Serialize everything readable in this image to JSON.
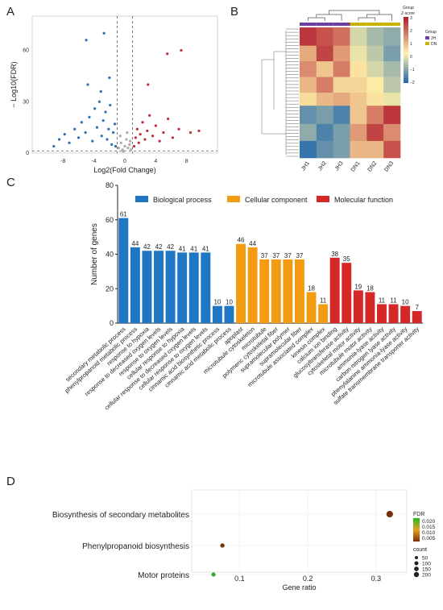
{
  "panels": {
    "a": "A",
    "b": "B",
    "c": "C",
    "d": "D"
  },
  "colors": {
    "volcano_up": "#c0303a",
    "volcano_down": "#2f6fb5",
    "volcano_ns": "#aaaaaa",
    "bio": "#1f77c4",
    "cell": "#f39c12",
    "mol": "#d62728",
    "heat_high": "#b2182b",
    "heat_mid": "#fff2a8",
    "heat_low": "#2166ac",
    "group_jh": "#6b3fa0",
    "group_dn": "#c8b400",
    "fdr_high": "#22bb22",
    "fdr_low": "#7b2d0a"
  },
  "chart_data": [
    {
      "panel": "A",
      "type": "scatter",
      "xlabel": "Log2(Fold Change)",
      "ylabel": "− Log10(FDR)",
      "x_ticks": [
        "-8",
        "-4",
        "0",
        "4",
        "8"
      ],
      "y_ticks": [
        "0",
        "30",
        "60"
      ],
      "xlim": [
        -12,
        12
      ],
      "ylim": [
        0,
        80
      ],
      "thresholds": {
        "fc": [
          -1,
          1
        ],
        "fdr": 1.3
      },
      "points": [
        [
          -9.2,
          4,
          "down"
        ],
        [
          -8.5,
          8,
          "down"
        ],
        [
          -7.8,
          11,
          "down"
        ],
        [
          -7.2,
          6,
          "down"
        ],
        [
          -6.5,
          14,
          "down"
        ],
        [
          -6.0,
          9,
          "down"
        ],
        [
          -5.6,
          18,
          "down"
        ],
        [
          -5.1,
          12,
          "down"
        ],
        [
          -4.6,
          21,
          "down"
        ],
        [
          -4.2,
          7,
          "down"
        ],
        [
          -3.9,
          26,
          "down"
        ],
        [
          -3.6,
          15,
          "down"
        ],
        [
          -3.3,
          30,
          "down"
        ],
        [
          -3.0,
          10,
          "down"
        ],
        [
          -2.8,
          19,
          "down"
        ],
        [
          -2.5,
          24,
          "down"
        ],
        [
          -2.3,
          8,
          "down"
        ],
        [
          -2.1,
          14,
          "down"
        ],
        [
          -1.9,
          28,
          "down"
        ],
        [
          -1.7,
          5,
          "down"
        ],
        [
          -1.5,
          12,
          "down"
        ],
        [
          -1.3,
          17,
          "down"
        ],
        [
          -1.2,
          4,
          "down"
        ],
        [
          -4.8,
          40,
          "down"
        ],
        [
          -3.1,
          36,
          "down"
        ],
        [
          -2.0,
          44,
          "down"
        ],
        [
          -5.0,
          66,
          "down"
        ],
        [
          -2.7,
          70,
          "down"
        ],
        [
          1.2,
          4,
          "up"
        ],
        [
          1.4,
          9,
          "up"
        ],
        [
          1.6,
          14,
          "up"
        ],
        [
          1.8,
          6,
          "up"
        ],
        [
          2.0,
          11,
          "up"
        ],
        [
          2.3,
          18,
          "up"
        ],
        [
          2.6,
          8,
          "up"
        ],
        [
          2.9,
          13,
          "up"
        ],
        [
          3.2,
          22,
          "up"
        ],
        [
          3.6,
          10,
          "up"
        ],
        [
          4.0,
          16,
          "up"
        ],
        [
          4.5,
          7,
          "up"
        ],
        [
          5.0,
          12,
          "up"
        ],
        [
          5.6,
          20,
          "up"
        ],
        [
          6.2,
          9,
          "up"
        ],
        [
          7.0,
          14,
          "up"
        ],
        [
          8.5,
          12,
          "up"
        ],
        [
          9.6,
          13,
          "up"
        ],
        [
          3.0,
          40,
          "up"
        ],
        [
          5.5,
          58,
          "up"
        ],
        [
          7.3,
          60,
          "up"
        ],
        [
          -0.8,
          3,
          "ns"
        ],
        [
          -0.5,
          6,
          "ns"
        ],
        [
          -0.3,
          2,
          "ns"
        ],
        [
          0.0,
          4,
          "ns"
        ],
        [
          0.2,
          8,
          "ns"
        ],
        [
          0.4,
          3,
          "ns"
        ],
        [
          0.6,
          5,
          "ns"
        ],
        [
          0.8,
          2,
          "ns"
        ],
        [
          -0.6,
          10,
          "ns"
        ],
        [
          0.3,
          12,
          "ns"
        ],
        [
          -0.2,
          1,
          "ns"
        ],
        [
          0.7,
          7,
          "ns"
        ]
      ]
    },
    {
      "panel": "B",
      "type": "heatmap",
      "columns": [
        "JH1",
        "JH2",
        "JH3",
        "DN1",
        "DN2",
        "DN3"
      ],
      "column_groups": [
        "JH",
        "JH",
        "JH",
        "DN",
        "DN",
        "DN"
      ],
      "legend_title": "Group",
      "legend_groups": [
        "JH",
        "DN"
      ],
      "scale_title": "Z-score",
      "scale_ticks": [
        "3",
        "2",
        "1",
        "0",
        "−1",
        "−2"
      ],
      "block_rows": [
        {
          "weight": 0.14,
          "values": [
            2.6,
            2.2,
            1.8,
            -0.4,
            -0.8,
            -1.0
          ]
        },
        {
          "weight": 0.12,
          "values": [
            1.0,
            2.4,
            1.2,
            -0.2,
            -0.6,
            -1.2
          ]
        },
        {
          "weight": 0.12,
          "values": [
            1.4,
            0.6,
            1.6,
            0.2,
            -0.4,
            -0.8
          ]
        },
        {
          "weight": 0.12,
          "values": [
            0.8,
            1.6,
            0.4,
            0.4,
            0.1,
            -0.6
          ]
        },
        {
          "weight": 0.1,
          "values": [
            0.3,
            0.8,
            1.0,
            0.6,
            0.2,
            -0.2
          ]
        },
        {
          "weight": 0.14,
          "values": [
            -1.4,
            -1.2,
            -1.6,
            0.6,
            1.6,
            2.6
          ]
        },
        {
          "weight": 0.13,
          "values": [
            -1.0,
            -1.6,
            -1.2,
            1.2,
            2.4,
            1.4
          ]
        },
        {
          "weight": 0.13,
          "values": [
            -1.8,
            -1.4,
            -1.2,
            0.8,
            0.8,
            2.2
          ]
        }
      ]
    },
    {
      "panel": "C",
      "type": "bar",
      "ylabel": "Number of genes",
      "ylim": [
        0,
        80
      ],
      "y_ticks": [
        0,
        20,
        40,
        60,
        80
      ],
      "legend": [
        {
          "name": "Biological process",
          "key": "bio"
        },
        {
          "name": "Cellular component",
          "key": "cell"
        },
        {
          "name": "Molecular function",
          "key": "mol"
        }
      ],
      "bars": [
        {
          "label": "secondary metabolic process",
          "value": 61,
          "group": "bio"
        },
        {
          "label": "phenylpropanoid metabolic process",
          "value": 44,
          "group": "bio"
        },
        {
          "label": "response to hypoxia",
          "value": 42,
          "group": "bio"
        },
        {
          "label": "response to decreased oxygen levels",
          "value": 42,
          "group": "bio"
        },
        {
          "label": "response to oxygen levels",
          "value": 42,
          "group": "bio"
        },
        {
          "label": "cellular response to hypoxia",
          "value": 41,
          "group": "bio"
        },
        {
          "label": "cellular response to decreased oxygen levels",
          "value": 41,
          "group": "bio"
        },
        {
          "label": "cellular response to oxygen levels",
          "value": 41,
          "group": "bio"
        },
        {
          "label": "cinnamic acid biosynthetic process",
          "value": 10,
          "group": "bio"
        },
        {
          "label": "cinnamic acid metabolic process",
          "value": 10,
          "group": "bio"
        },
        {
          "label": "apoplast",
          "value": 46,
          "group": "cell"
        },
        {
          "label": "microtubule cytoskeleton",
          "value": 44,
          "group": "cell"
        },
        {
          "label": "microtubule",
          "value": 37,
          "group": "cell"
        },
        {
          "label": "polymeric cytoskeletal fiber",
          "value": 37,
          "group": "cell"
        },
        {
          "label": "supramolecular polymer",
          "value": 37,
          "group": "cell"
        },
        {
          "label": "supramolecular fiber",
          "value": 37,
          "group": "cell"
        },
        {
          "label": "microtubule associated complex",
          "value": 18,
          "group": "cell"
        },
        {
          "label": "kinesin complex",
          "value": 11,
          "group": "cell"
        },
        {
          "label": "calcium ion binding",
          "value": 38,
          "group": "mol"
        },
        {
          "label": "glucosyltransferase activity",
          "value": 35,
          "group": "mol"
        },
        {
          "label": "cytoskeletal motor activity",
          "value": 19,
          "group": "mol"
        },
        {
          "label": "microtubule motor activity",
          "value": 18,
          "group": "mol"
        },
        {
          "label": "ammonia-lyase activity",
          "value": 11,
          "group": "mol"
        },
        {
          "label": "carbon-nitrogen lyase activity",
          "value": 11,
          "group": "mol"
        },
        {
          "label": "phenylalanine ammonia-lyase activity",
          "value": 10,
          "group": "mol"
        },
        {
          "label": "sulfate transmembrane transporter activity",
          "value": 7,
          "group": "mol"
        }
      ]
    },
    {
      "panel": "D",
      "type": "scatter",
      "xlabel": "Gene ratio",
      "x_ticks": [
        0.1,
        0.2,
        0.3
      ],
      "xlim": [
        0.03,
        0.345
      ],
      "terms": [
        {
          "label": "Biosynthesis of secondary metabolites",
          "ratio": 0.32,
          "count": 61,
          "fdr": 0.004
        },
        {
          "label": "Phenylpropanoid biosynthesis",
          "ratio": 0.075,
          "count": 14,
          "fdr": 0.006
        },
        {
          "label": "Motor proteins",
          "ratio": 0.062,
          "count": 11,
          "fdr": 0.021
        }
      ],
      "fdr_title": "FDR",
      "fdr_ticks": [
        0.02,
        0.015,
        0.01,
        0.005
      ],
      "fdr_tick_labels": [
        "0.020",
        "0.015",
        "0.010",
        "0.005"
      ],
      "count_title": "count",
      "count_ticks": [
        50,
        100,
        150,
        200
      ]
    }
  ]
}
